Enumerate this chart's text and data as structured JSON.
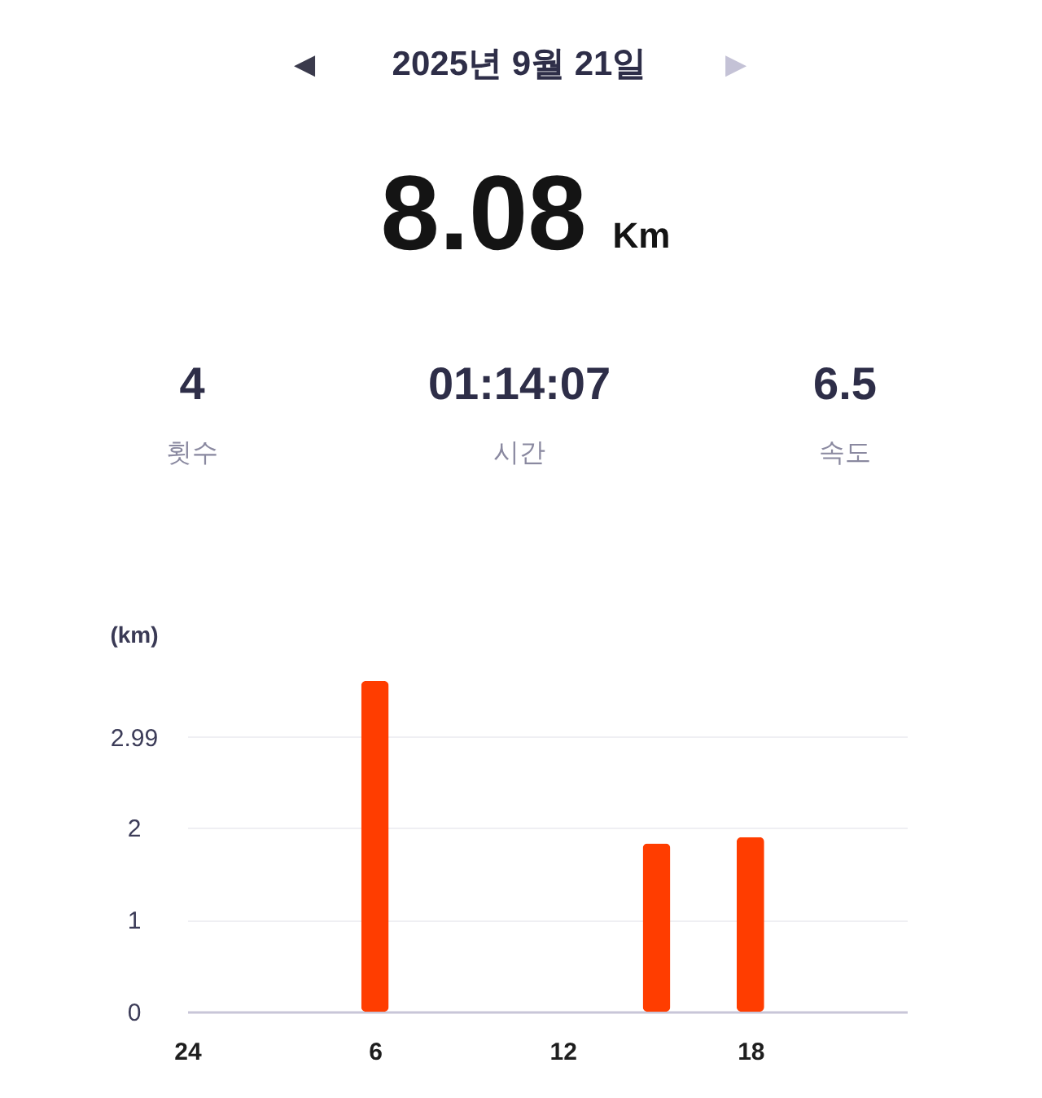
{
  "chart_data": [
    {
      "type": "other",
      "title": "2025년 9월 21일",
      "annotations": [
        "◀",
        "▶",
        "8.08",
        "Km",
        "4",
        "횟수",
        "01:14:07",
        "시간",
        "6.5",
        "속도"
      ]
    },
    {
      "type": "bar",
      "ylabel": "(km)",
      "categories": [
        "24",
        null,
        null,
        null,
        null,
        null,
        "6",
        null,
        null,
        null,
        null,
        null,
        "12",
        null,
        null,
        null,
        null,
        null,
        "18",
        null,
        null,
        null,
        null,
        null
      ],
      "values": [
        null,
        null,
        null,
        null,
        null,
        null,
        3.6,
        null,
        null,
        null,
        null,
        null,
        null,
        null,
        null,
        1.83,
        null,
        null,
        1.9,
        null,
        null,
        null,
        null,
        null
      ],
      "color": "#ff3d00",
      "ylim": [
        0,
        3.6
      ],
      "yticks": [
        0,
        1,
        2,
        2.99
      ],
      "grid": "y"
    }
  ]
}
